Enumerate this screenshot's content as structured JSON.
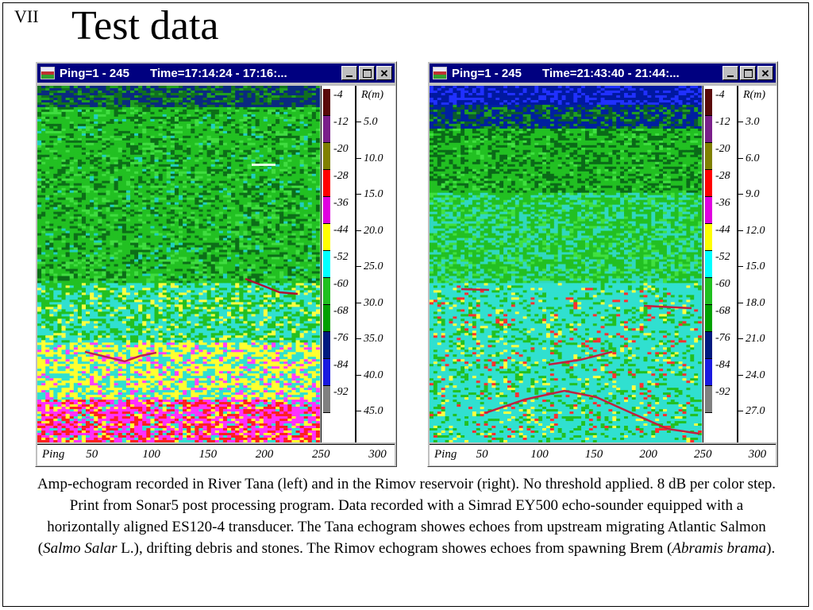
{
  "slide": {
    "number": "VII",
    "title": "Test data"
  },
  "windows": [
    {
      "title_ping": "Ping=1 - 245",
      "title_time": "Time=17:14:24 - 17:16:...",
      "buttons": [
        "minimize",
        "maximize",
        "close"
      ],
      "close_label": "✕",
      "scale_header": "R(m)",
      "db_labels": [
        "-4",
        "-12",
        "-20",
        "-28",
        "-36",
        "-44",
        "-52",
        "-60",
        "-68",
        "-76",
        "-84",
        "-92"
      ],
      "range_labels": [
        "5.0",
        "10.0",
        "15.0",
        "20.0",
        "25.0",
        "30.0",
        "35.0",
        "40.0",
        "45.0"
      ],
      "ping_label": "Ping",
      "ping_ticks": [
        "50",
        "100",
        "150",
        "200",
        "250",
        "300"
      ]
    },
    {
      "title_ping": "Ping=1 - 245",
      "title_time": "Time=21:43:40 - 21:44:...",
      "buttons": [
        "minimize",
        "maximize",
        "close"
      ],
      "close_label": "✕",
      "scale_header": "R(m)",
      "db_labels": [
        "-4",
        "-12",
        "-20",
        "-28",
        "-36",
        "-44",
        "-52",
        "-60",
        "-68",
        "-76",
        "-84",
        "-92"
      ],
      "range_labels": [
        "3.0",
        "6.0",
        "9.0",
        "12.0",
        "15.0",
        "18.0",
        "21.0",
        "24.0",
        "27.0"
      ],
      "ping_label": "Ping",
      "ping_ticks": [
        "50",
        "100",
        "150",
        "200",
        "250",
        "300"
      ]
    }
  ],
  "colorscale": [
    "#5a0a0a",
    "#7a1f8a",
    "#808000",
    "#ff0000",
    "#e000e0",
    "#ffff00",
    "#00ffff",
    "#20c020",
    "#00a000",
    "#001a80",
    "#1a1ae0",
    "#808080"
  ],
  "caption": {
    "part1": "Amp-echogram recorded in River Tana (left) and in the Rimov reservoir (right).  No threshold applied. 8 dB per color step. Print from Sonar5 post processing program. Data recorded with a Simrad EY500 echo-sounder equipped with a horizontally aligned ES120-4 transducer. The Tana echogram showes echoes from upstream migrating Atlantic Salmon (",
    "species1": "Salmo Salar",
    "part2": " L.), drifting debris and stones. The Rimov echogram showes echoes from spawning Brem (",
    "species2": "Abramis brama",
    "part3": ")."
  }
}
